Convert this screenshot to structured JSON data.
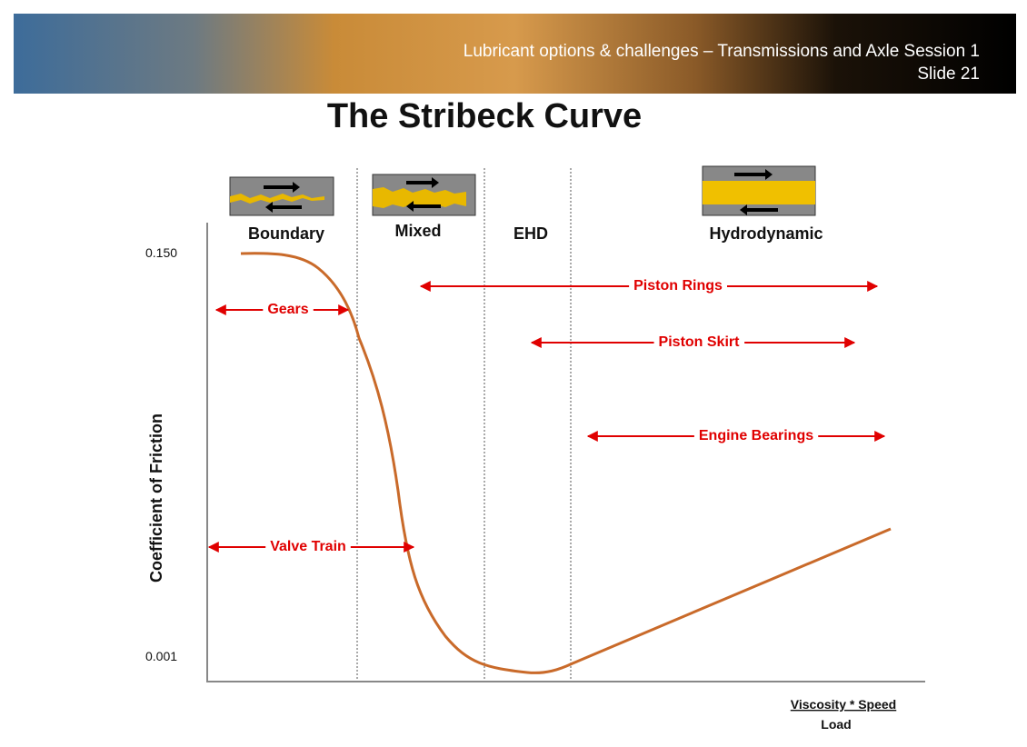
{
  "header": {
    "title": "Lubricant options & challenges – Transmissions and Axle Session 1",
    "slide": "Slide 21"
  },
  "title": "The Stribeck Curve",
  "regimes": [
    "Boundary",
    "Mixed",
    "EHD",
    "Hydrodynamic"
  ],
  "y_axis": {
    "label": "Coefficient of Friction",
    "ticks": [
      "0.150",
      "0.001"
    ]
  },
  "x_axis": {
    "numerator": "Viscosity * Speed",
    "denominator": "Load"
  },
  "applications": [
    "Piston Rings",
    "Gears",
    "Piston Skirt",
    "Engine Bearings",
    "Valve Train"
  ]
}
